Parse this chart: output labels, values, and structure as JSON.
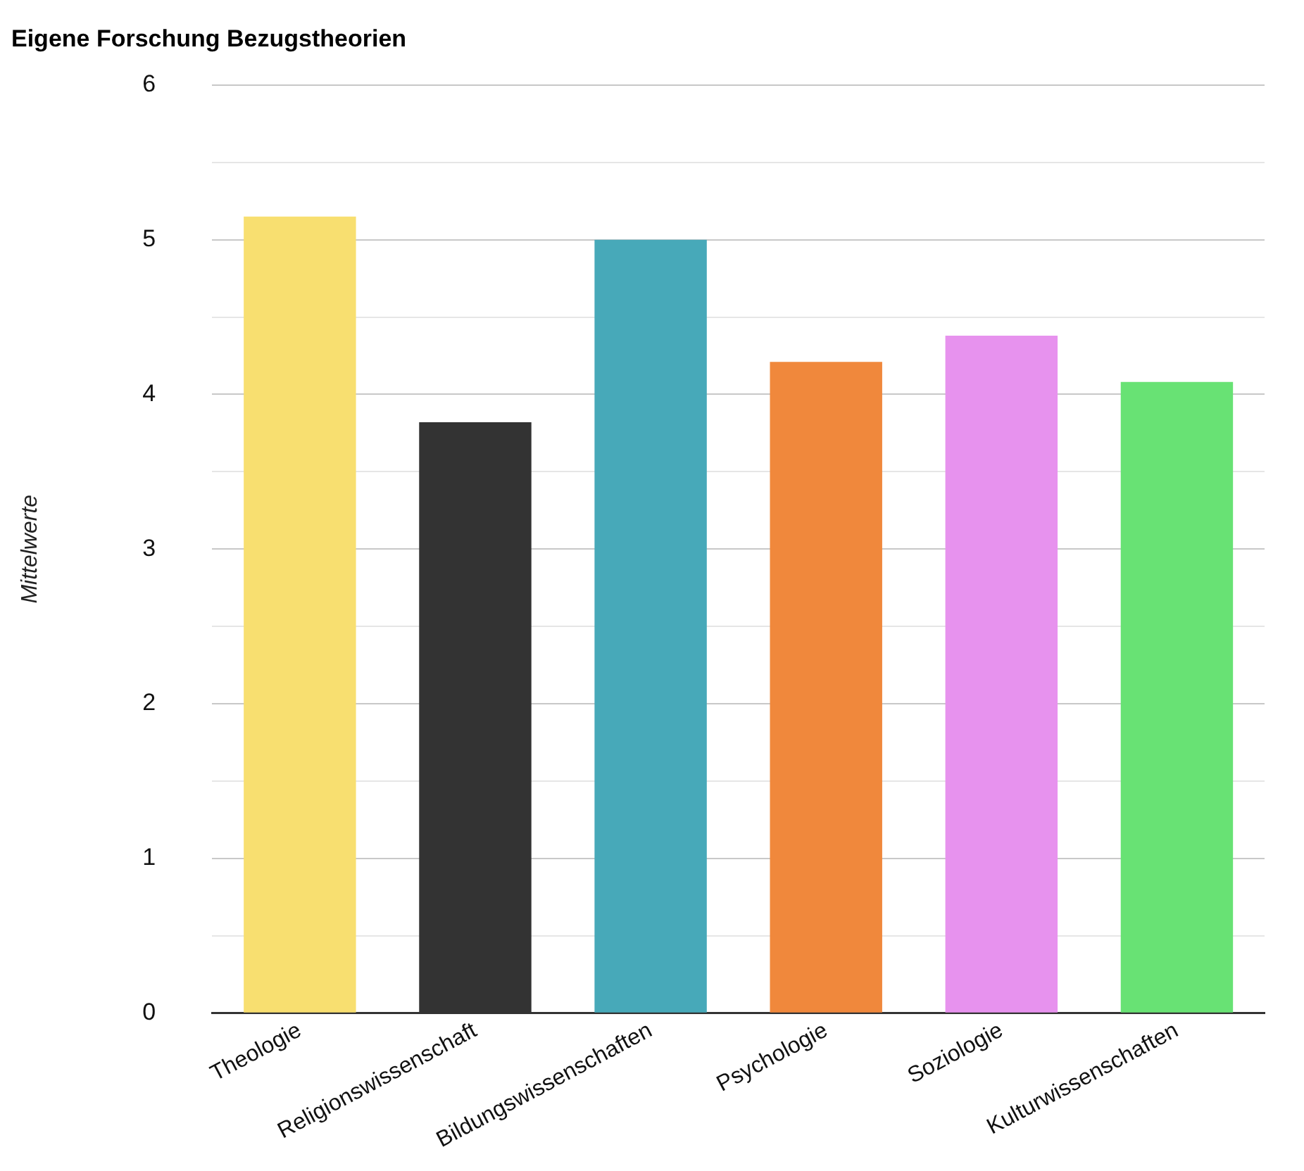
{
  "chart_data": {
    "type": "bar",
    "title": "Eigene Forschung Bezugstheorien",
    "ylabel": "Mittelwerte",
    "categories": [
      "Theologie",
      "Religionswissenschaft",
      "Bildungswissenschaften",
      "Psychologie",
      "Soziologie",
      "Kulturwissenschaften"
    ],
    "values": [
      5.15,
      3.82,
      5.0,
      4.21,
      4.38,
      4.08
    ],
    "colors": [
      "#f8df70",
      "#333333",
      "#47a9b9",
      "#f0883c",
      "#e792ee",
      "#68e274"
    ],
    "ylim": [
      0,
      6
    ],
    "yticks": [
      0,
      {
        "value": 0.5,
        "label": null
      },
      1,
      {
        "value": 1.5,
        "label": null
      },
      2,
      {
        "value": 2.5,
        "label": null
      },
      3,
      {
        "value": 3.5,
        "label": null
      },
      4,
      {
        "value": 4.5,
        "label": null
      },
      5,
      {
        "value": 5.5,
        "label": null
      },
      6
    ],
    "grid": "y",
    "legend": false
  }
}
